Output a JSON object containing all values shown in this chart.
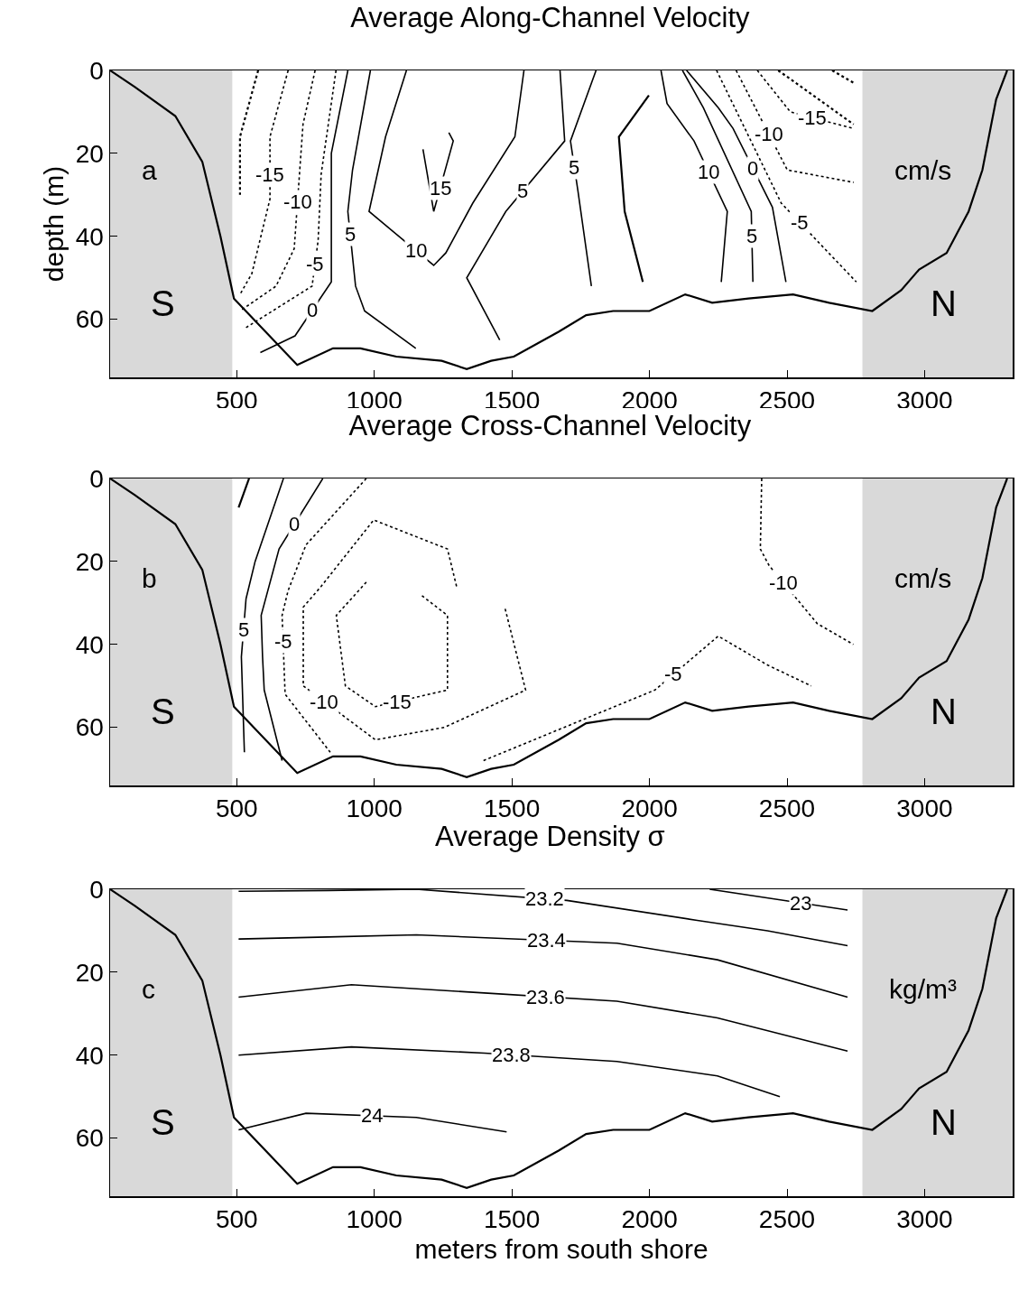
{
  "chart_data": [
    {
      "type": "line",
      "title": "Average Along-Channel Velocity",
      "ylabel": "depth (m)",
      "xlim": [
        40,
        3320
      ],
      "ylim": [
        74,
        0
      ],
      "xticks": [
        500,
        1000,
        1500,
        2000,
        2500,
        3000
      ],
      "yticks": [
        0,
        20,
        40,
        60
      ],
      "grid": false,
      "legend": false,
      "annotations": [
        "a",
        "S",
        "N",
        "cm/s"
      ],
      "bands": [
        {
          "axis": "x",
          "from": 40,
          "to": 484,
          "color": "#d9d9d9"
        },
        {
          "axis": "x",
          "from": 2774,
          "to": 3320,
          "color": "#d9d9d9"
        }
      ],
      "series": [
        {
          "color": "#000000",
          "line_style": "solid",
          "x": [
            40,
            130,
            277,
            375,
            441,
            490,
            720,
            850,
            950,
            1080,
            1245,
            1336,
            1425,
            1507,
            1670,
            1770,
            1868,
            2000,
            2130,
            2228,
            2360,
            2522,
            2653,
            2810,
            2915,
            2980,
            3080,
            3160,
            3210,
            3260,
            3300
          ],
          "values": [
            0,
            4,
            11,
            22,
            40,
            55,
            71,
            67,
            67,
            69,
            70,
            72,
            70,
            69,
            63,
            59,
            58,
            58,
            54,
            56,
            55,
            54,
            56,
            58,
            53,
            48,
            44,
            34,
            24,
            7,
            0
          ]
        },
        {
          "color": "#000000",
          "line_style": "dotted",
          "x": [
            578,
            512,
            512
          ],
          "values": [
            0,
            16,
            30
          ]
        },
        {
          "name": "-15",
          "color": "#000000",
          "line_style": "dotted",
          "x": [
            687,
            621,
            621,
            555,
            512
          ],
          "values": [
            0,
            16,
            31,
            49,
            54
          ]
        },
        {
          "name": "-10",
          "color": "#000000",
          "line_style": "dotted",
          "x": [
            785,
            741,
            709,
            643,
            512
          ],
          "values": [
            0,
            13,
            43,
            52,
            58
          ]
        },
        {
          "name": "-5",
          "color": "#000000",
          "line_style": "dotted",
          "x": [
            861,
            807,
            796,
            774,
            534
          ],
          "values": [
            0,
            25,
            41,
            52,
            62
          ]
        },
        {
          "name": "0",
          "color": "#000000",
          "line_style": "solid",
          "x": [
            904,
            844,
            844,
            844,
            712,
            586
          ],
          "values": [
            0,
            20,
            29,
            51,
            64,
            68
          ]
        },
        {
          "name": "5",
          "color": "#000000",
          "line_style": "solid",
          "x": [
            986,
            921,
            904,
            932,
            965,
            1151
          ],
          "values": [
            0,
            24,
            34,
            52,
            58,
            67
          ]
        },
        {
          "name": "10",
          "color": "#000000",
          "line_style": "solid",
          "x": [
            1117,
            1041,
            981,
            1216,
            1260,
            1358,
            1511,
            1544
          ],
          "values": [
            0,
            16,
            34,
            47,
            44,
            32,
            16,
            0
          ]
        },
        {
          "name": "15",
          "color": "#000000",
          "line_style": "solid",
          "x": [
            1177,
            1216,
            1287,
            1271
          ],
          "values": [
            19,
            34,
            17,
            15
          ]
        },
        {
          "name": "5",
          "color": "#000000",
          "line_style": "solid",
          "x": [
            1675,
            1692,
            1478,
            1336,
            1456
          ],
          "values": [
            0,
            17,
            34,
            50,
            65
          ]
        },
        {
          "name": "5",
          "color": "#000000",
          "line_style": "solid",
          "x": [
            1806,
            1713,
            1740,
            1789
          ],
          "values": [
            0,
            17,
            29,
            52
          ]
        },
        {
          "color": "#000000",
          "line_style": "solid",
          "x": [
            1998,
            1889,
            1910,
            1976
          ],
          "values": [
            6,
            16,
            34,
            51
          ]
        },
        {
          "name": "10",
          "color": "#000000",
          "line_style": "solid",
          "x": [
            2042,
            2064,
            2162,
            2283,
            2261
          ],
          "values": [
            0,
            8,
            17,
            34,
            51
          ]
        },
        {
          "name": "5",
          "color": "#000000",
          "line_style": "solid",
          "x": [
            2120,
            2196,
            2370,
            2376
          ],
          "values": [
            0,
            9,
            34,
            51
          ]
        },
        {
          "name": "0",
          "color": "#000000",
          "line_style": "solid",
          "x": [
            2135,
            2250,
            2304,
            2447,
            2496
          ],
          "values": [
            0,
            9,
            14,
            33,
            51
          ]
        },
        {
          "name": "-5",
          "color": "#000000",
          "line_style": "dotted",
          "x": [
            2244,
            2479,
            2752
          ],
          "values": [
            0,
            32,
            51
          ]
        },
        {
          "name": "-10",
          "color": "#000000",
          "line_style": "dotted",
          "x": [
            2315,
            2501,
            2742
          ],
          "values": [
            0,
            24,
            27
          ]
        },
        {
          "name": "-15",
          "color": "#000000",
          "line_style": "dotted",
          "x": [
            2392,
            2512,
            2742
          ],
          "values": [
            0,
            10,
            14
          ]
        },
        {
          "color": "#000000",
          "line_style": "dotted",
          "x": [
            2468,
            2742
          ],
          "values": [
            0,
            13
          ]
        },
        {
          "color": "#000000",
          "line_style": "dotted",
          "x": [
            2664,
            2742
          ],
          "values": [
            0,
            3
          ]
        }
      ]
    },
    {
      "type": "line",
      "title": "Average Cross-Channel Velocity",
      "xlim": [
        40,
        3320
      ],
      "ylim": [
        74,
        0
      ],
      "xticks": [
        500,
        1000,
        1500,
        2000,
        2500,
        3000
      ],
      "yticks": [
        0,
        20,
        40,
        60
      ],
      "grid": false,
      "legend": false,
      "annotations": [
        "b",
        "S",
        "N",
        "cm/s"
      ],
      "bands": [
        {
          "axis": "x",
          "from": 40,
          "to": 484,
          "color": "#d9d9d9"
        },
        {
          "axis": "x",
          "from": 2774,
          "to": 3320,
          "color": "#d9d9d9"
        }
      ],
      "series": [
        {
          "color": "#000000",
          "line_style": "solid",
          "x": [
            40,
            130,
            277,
            375,
            441,
            490,
            720,
            850,
            950,
            1080,
            1245,
            1336,
            1425,
            1507,
            1670,
            1770,
            1868,
            2000,
            2130,
            2228,
            2360,
            2522,
            2653,
            2810,
            2915,
            2980,
            3080,
            3160,
            3210,
            3260,
            3300
          ],
          "values": [
            0,
            4,
            11,
            22,
            40,
            55,
            71,
            67,
            67,
            69,
            70,
            72,
            70,
            69,
            63,
            59,
            58,
            58,
            54,
            56,
            55,
            54,
            56,
            58,
            53,
            48,
            44,
            34,
            24,
            7,
            0
          ]
        },
        {
          "color": "#000000",
          "line_style": "solid",
          "x": [
            545,
            507
          ],
          "values": [
            0,
            7
          ]
        },
        {
          "name": "5",
          "color": "#000000",
          "line_style": "solid",
          "x": [
            670,
            567,
            534,
            517,
            528
          ],
          "values": [
            0,
            20,
            29,
            43,
            66
          ]
        },
        {
          "name": "0",
          "color": "#000000",
          "line_style": "solid",
          "x": [
            813,
            654,
            589,
            594,
            600,
            665
          ],
          "values": [
            0,
            17,
            33,
            43,
            51,
            68
          ]
        },
        {
          "name": "-5",
          "color": "#000000",
          "line_style": "dotted",
          "x": [
            971,
            752,
            687,
            665,
            676,
            840
          ],
          "values": [
            0,
            16,
            27,
            33,
            52,
            66
          ]
        },
        {
          "name": "-10",
          "color": "#000000",
          "line_style": "dotted",
          "x": [
            1299,
            1266,
            998,
            807,
            742,
            742,
            1004,
            1255,
            1550,
            1474
          ],
          "values": [
            26,
            17,
            10,
            26,
            31,
            50,
            63,
            60,
            51,
            31
          ]
        },
        {
          "name": "-15",
          "color": "#000000",
          "line_style": "dotted",
          "x": [
            971,
            862,
            895,
            1004,
            1266,
            1266,
            1168
          ],
          "values": [
            25,
            33,
            50,
            55,
            51,
            33,
            28
          ]
        },
        {
          "name": "-10",
          "color": "#000000",
          "line_style": "dotted",
          "x": [
            2408,
            2403,
            2435,
            2610,
            2741
          ],
          "values": [
            0,
            17,
            21,
            35,
            40
          ]
        },
        {
          "name": "-5",
          "color": "#000000",
          "line_style": "dotted",
          "x": [
            1397,
            1507,
            2020,
            2250,
            2430,
            2588
          ],
          "values": [
            68,
            65,
            51,
            38,
            45,
            50
          ]
        }
      ]
    },
    {
      "type": "line",
      "title": "Average Density σ",
      "xlabel": "meters from south shore",
      "xlim": [
        40,
        3320
      ],
      "ylim": [
        74,
        0
      ],
      "xticks": [
        500,
        1000,
        1500,
        2000,
        2500,
        3000
      ],
      "yticks": [
        0,
        20,
        40,
        60
      ],
      "grid": false,
      "legend": false,
      "annotations": [
        "c",
        "S",
        "N",
        "kg/m³"
      ],
      "bands": [
        {
          "axis": "x",
          "from": 40,
          "to": 484,
          "color": "#d9d9d9"
        },
        {
          "axis": "x",
          "from": 2774,
          "to": 3320,
          "color": "#d9d9d9"
        }
      ],
      "series": [
        {
          "color": "#000000",
          "line_style": "solid",
          "x": [
            40,
            130,
            277,
            375,
            441,
            490,
            720,
            850,
            950,
            1080,
            1245,
            1336,
            1425,
            1507,
            1670,
            1770,
            1868,
            2000,
            2130,
            2228,
            2360,
            2522,
            2653,
            2810,
            2915,
            2980,
            3080,
            3160,
            3210,
            3260,
            3300
          ],
          "values": [
            0,
            4,
            11,
            22,
            40,
            55,
            71,
            67,
            67,
            69,
            70,
            72,
            70,
            69,
            63,
            59,
            58,
            58,
            54,
            56,
            55,
            54,
            56,
            58,
            53,
            48,
            44,
            34,
            24,
            7,
            0
          ]
        },
        {
          "name": "23",
          "color": "#000000",
          "line_style": "solid",
          "x": [
            2219,
            2470,
            2720
          ],
          "values": [
            0,
            2.5,
            5
          ]
        },
        {
          "name": "23.2",
          "color": "#000000",
          "line_style": "solid",
          "x": [
            507,
            830,
            1153,
            1700,
            2174,
            2429,
            2720
          ],
          "values": [
            0.5,
            0.3,
            0,
            2.7,
            7.5,
            10,
            13.6
          ]
        },
        {
          "name": "23.4",
          "color": "#000000",
          "line_style": "solid",
          "x": [
            507,
            830,
            1153,
            1882,
            2247,
            2720
          ],
          "values": [
            12,
            11.5,
            11,
            13,
            17,
            26
          ]
        },
        {
          "name": "23.6",
          "color": "#000000",
          "line_style": "solid",
          "x": [
            507,
            917,
            1400,
            1882,
            2247,
            2720
          ],
          "values": [
            26,
            23,
            25,
            27,
            31,
            39
          ]
        },
        {
          "name": "23.8",
          "color": "#000000",
          "line_style": "solid",
          "x": [
            507,
            917,
            1400,
            1882,
            2247,
            2474
          ],
          "values": [
            40,
            38,
            39.5,
            41.5,
            45,
            50
          ]
        },
        {
          "name": "24",
          "color": "#000000",
          "line_style": "solid",
          "x": [
            507,
            752,
            1153,
            1481
          ],
          "values": [
            58,
            54,
            55,
            58.5
          ]
        }
      ]
    }
  ]
}
